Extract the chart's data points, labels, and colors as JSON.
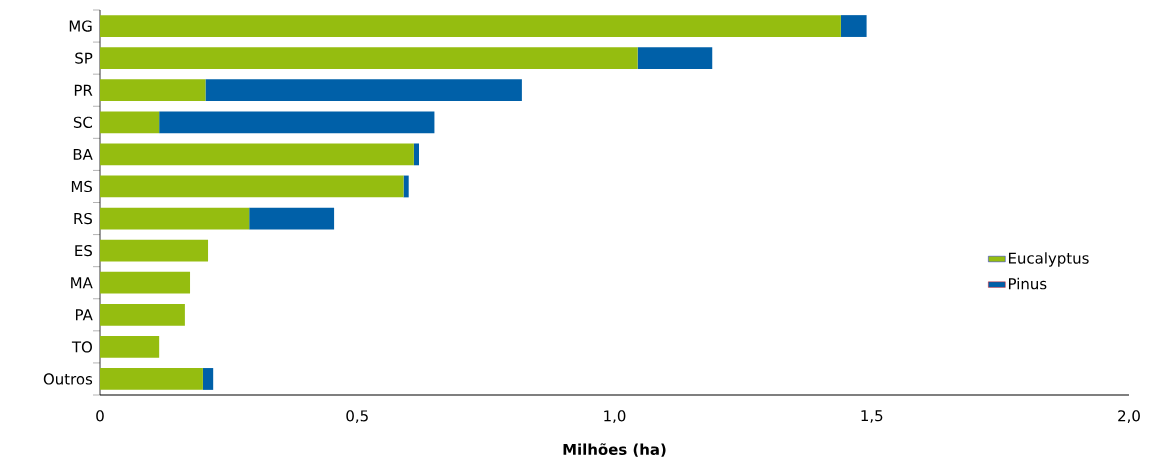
{
  "chart_data": {
    "type": "bar",
    "orientation": "horizontal",
    "stacked": true,
    "xlabel": "Milhões (ha)",
    "categories": [
      "MG",
      "SP",
      "PR",
      "SC",
      "BA",
      "MS",
      "RS",
      "ES",
      "MA",
      "PA",
      "TO",
      "Outros"
    ],
    "series": [
      {
        "name": "Eucalyptus",
        "color": "#95bd10",
        "values": [
          1.44,
          1.045,
          0.205,
          0.115,
          0.61,
          0.59,
          0.29,
          0.21,
          0.175,
          0.165,
          0.115,
          0.2
        ]
      },
      {
        "name": "Pinus",
        "color": "#0060a8",
        "values": [
          0.05,
          0.145,
          0.615,
          0.535,
          0.01,
          0.01,
          0.165,
          null,
          null,
          null,
          null,
          0.02
        ]
      }
    ],
    "xlim": [
      0,
      2.0
    ],
    "xticks": [
      {
        "value": 0,
        "label": "0"
      },
      {
        "value": 0.5,
        "label": "0,5"
      },
      {
        "value": 1.0,
        "label": "1,0"
      },
      {
        "value": 1.5,
        "label": "1,5"
      },
      {
        "value": 2.0,
        "label": "2,0"
      }
    ],
    "grid": false,
    "legend": "right"
  }
}
